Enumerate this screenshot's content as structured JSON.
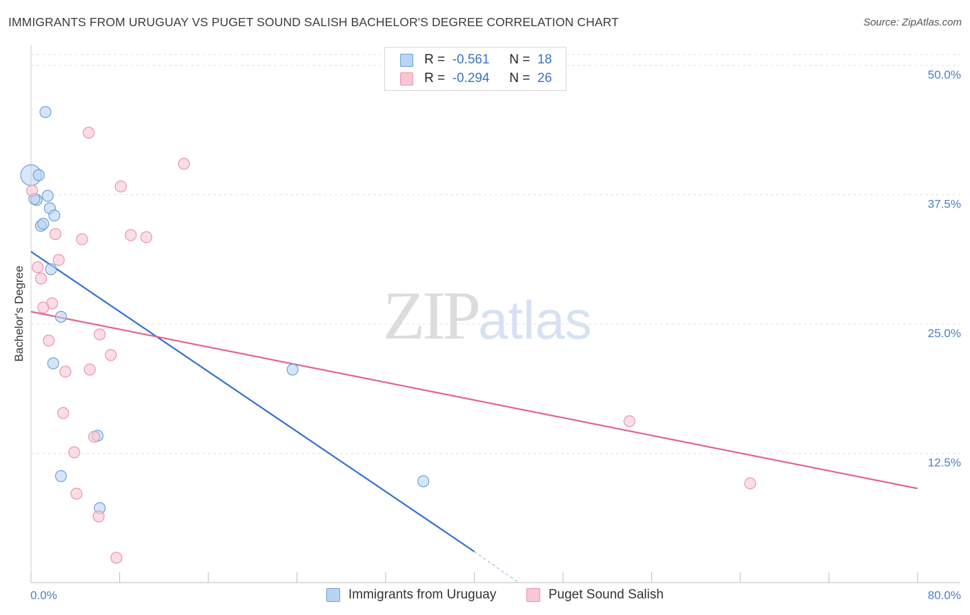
{
  "title": "IMMIGRANTS FROM URUGUAY VS PUGET SOUND SALISH BACHELOR'S DEGREE CORRELATION CHART",
  "source": "Source: ZipAtlas.com",
  "watermark": {
    "zip": "ZIP",
    "atlas": "atlas"
  },
  "legend": {
    "uruguay": {
      "r_label": "R =",
      "r_value": "-0.561",
      "n_label": "N =",
      "n_value": "18"
    },
    "salish": {
      "r_label": "R =",
      "r_value": "-0.294",
      "n_label": "N =",
      "n_value": "26"
    }
  },
  "colors": {
    "uruguay_fill": "#b9d3f3",
    "uruguay_stroke": "#6d9fdb",
    "uruguay_line": "#2e6fd0",
    "salish_fill": "#f8c6d4",
    "salish_stroke": "#ec93ae",
    "salish_line": "#e0648c",
    "grid": "#e3e3e3",
    "tick": "#4a7ec9"
  },
  "chart_data": {
    "type": "scatter",
    "title": "IMMIGRANTS FROM URUGUAY VS PUGET SOUND SALISH BACHELOR'S DEGREE CORRELATION CHART",
    "xlabel": "",
    "ylabel": "Bachelor's Degree",
    "xlim": [
      0,
      80
    ],
    "ylim": [
      0,
      50
    ],
    "x_ticks": [
      "0.0%",
      "80.0%"
    ],
    "y_ticks": [
      {
        "value": 12.5,
        "label": "12.5%"
      },
      {
        "value": 25,
        "label": "25.0%"
      },
      {
        "value": 37.5,
        "label": "37.5%"
      },
      {
        "value": 50,
        "label": "50.0%"
      }
    ],
    "series": [
      {
        "name": "Immigrants from Uruguay",
        "color": "uruguay",
        "points": [
          {
            "x": 0.0,
            "y": 39.4,
            "big": true
          },
          {
            "x": 1.3,
            "y": 45.5
          },
          {
            "x": 0.7,
            "y": 39.4
          },
          {
            "x": 1.5,
            "y": 37.4
          },
          {
            "x": 0.5,
            "y": 37.0
          },
          {
            "x": 1.7,
            "y": 36.2
          },
          {
            "x": 2.1,
            "y": 35.5
          },
          {
            "x": 0.9,
            "y": 34.5
          },
          {
            "x": 1.1,
            "y": 34.7
          },
          {
            "x": 1.8,
            "y": 30.3
          },
          {
            "x": 2.7,
            "y": 25.7
          },
          {
            "x": 2.0,
            "y": 21.2
          },
          {
            "x": 23.6,
            "y": 20.6
          },
          {
            "x": 6.0,
            "y": 14.2
          },
          {
            "x": 2.7,
            "y": 10.3
          },
          {
            "x": 35.4,
            "y": 9.8
          },
          {
            "x": 6.2,
            "y": 7.2
          },
          {
            "x": 0.3,
            "y": 37.1
          }
        ],
        "trend": {
          "x1": 0,
          "y1": 32.0,
          "x2": 40,
          "y2": 3.0,
          "solid_until_x": 40,
          "dash_to_x": 44,
          "dash_to_y": 0
        }
      },
      {
        "name": "Puget Sound Salish",
        "color": "salish",
        "points": [
          {
            "x": 5.2,
            "y": 43.5
          },
          {
            "x": 13.8,
            "y": 40.5
          },
          {
            "x": 8.1,
            "y": 38.3
          },
          {
            "x": 0.1,
            "y": 37.9
          },
          {
            "x": 2.2,
            "y": 33.7
          },
          {
            "x": 9.0,
            "y": 33.6
          },
          {
            "x": 10.4,
            "y": 33.4
          },
          {
            "x": 4.6,
            "y": 33.2
          },
          {
            "x": 2.5,
            "y": 31.2
          },
          {
            "x": 0.6,
            "y": 30.5
          },
          {
            "x": 0.9,
            "y": 29.4
          },
          {
            "x": 1.9,
            "y": 27.0
          },
          {
            "x": 1.1,
            "y": 26.6
          },
          {
            "x": 6.2,
            "y": 24.0
          },
          {
            "x": 1.6,
            "y": 23.4
          },
          {
            "x": 7.2,
            "y": 22.0
          },
          {
            "x": 3.1,
            "y": 20.4
          },
          {
            "x": 5.3,
            "y": 20.6
          },
          {
            "x": 2.9,
            "y": 16.4
          },
          {
            "x": 5.7,
            "y": 14.1
          },
          {
            "x": 3.9,
            "y": 12.6
          },
          {
            "x": 54.0,
            "y": 15.6
          },
          {
            "x": 4.1,
            "y": 8.6
          },
          {
            "x": 6.1,
            "y": 6.4
          },
          {
            "x": 64.9,
            "y": 9.6
          },
          {
            "x": 7.7,
            "y": 2.4
          }
        ],
        "trend": {
          "x1": 0,
          "y1": 26.2,
          "x2": 80,
          "y2": 9.1
        }
      }
    ]
  },
  "bottom_legend": {
    "uruguay": "Immigrants from Uruguay",
    "salish": "Puget Sound Salish"
  }
}
